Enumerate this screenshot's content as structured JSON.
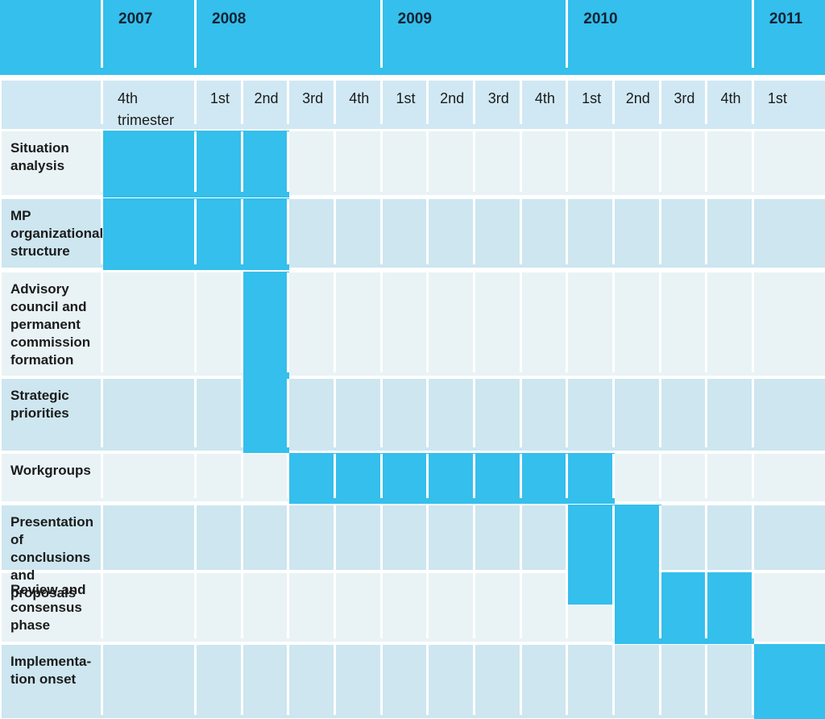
{
  "colors": {
    "blue": "#34bfec",
    "row-light": "#e9f3f6",
    "row-med": "#cde6f0",
    "hdr-row": "#d0e8f3",
    "sep": "#ffffff",
    "ink": "#1b1b1b"
  },
  "table": {
    "years": [
      {
        "label": "2007",
        "quarters": 1
      },
      {
        "label": "2008",
        "quarters": 4
      },
      {
        "label": "2009",
        "quarters": 4
      },
      {
        "label": "2010",
        "quarters": 4
      },
      {
        "label": "2011",
        "quarters": 1
      }
    ],
    "quarter_headers": [
      "4th trimester",
      "1st",
      "2nd",
      "3rd",
      "4th",
      "1st",
      "2nd",
      "3rd",
      "4th",
      "1st",
      "2nd",
      "3rd",
      "4th",
      "1st"
    ],
    "tasks": [
      {
        "label": "Situation analysis",
        "first_cell": 0,
        "last_cell": 2
      },
      {
        "label": "MP organizational structure",
        "first_cell": 0,
        "last_cell": 2
      },
      {
        "label": "Advisory council and permanent commission formation",
        "first_cell": 2,
        "last_cell": 2
      },
      {
        "label": "Strategic priorities",
        "first_cell": 2,
        "last_cell": 2
      },
      {
        "label": "Workgroups",
        "first_cell": 3,
        "last_cell": 9
      },
      {
        "label": "Presentation of conclusions and proposals",
        "first_cell": 9,
        "last_cell": 10
      },
      {
        "label": "Review and consensus phase",
        "first_cell": 10,
        "last_cell": 12
      },
      {
        "label": "Implementa-\ntion onset",
        "first_cell": 13,
        "last_cell": 13
      }
    ]
  },
  "chart_data": {
    "type": "table",
    "subtype": "gantt-timeline",
    "title": "",
    "columns": [
      "2007 4th trimester",
      "2008 1st",
      "2008 2nd",
      "2008 3rd",
      "2008 4th",
      "2009 1st",
      "2009 2nd",
      "2009 3rd",
      "2009 4th",
      "2010 1st",
      "2010 2nd",
      "2010 3rd",
      "2010 4th",
      "2011 1st"
    ],
    "rows": [
      {
        "task": "Situation analysis",
        "start": "2007 4th trimester",
        "end": "2008 2nd"
      },
      {
        "task": "MP organizational structure",
        "start": "2007 4th trimester",
        "end": "2008 2nd"
      },
      {
        "task": "Advisory council and permanent commission formation",
        "start": "2008 2nd",
        "end": "2008 2nd"
      },
      {
        "task": "Strategic priorities",
        "start": "2008 2nd",
        "end": "2008 2nd"
      },
      {
        "task": "Workgroups",
        "start": "2008 3rd",
        "end": "2010 1st"
      },
      {
        "task": "Presentation of conclusions and proposals",
        "start": "2010 1st",
        "end": "2010 2nd"
      },
      {
        "task": "Review and consensus phase",
        "start": "2010 2nd",
        "end": "2010 4th"
      },
      {
        "task": "Implementation onset",
        "start": "2011 1st",
        "end": "2011 1st"
      }
    ],
    "legend": false,
    "grid": true,
    "bar_color": "#34bfec"
  }
}
